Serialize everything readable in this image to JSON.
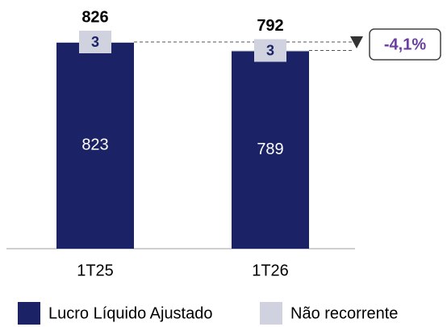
{
  "chart_data": {
    "type": "stacked_bar",
    "categories": [
      "1T25",
      "1T26"
    ],
    "series": [
      {
        "name": "Lucro Líquido Ajustado",
        "color": "#1b2366",
        "values": [
          823,
          789
        ]
      },
      {
        "name": "Não recorrente",
        "color": "#d0d3df",
        "values": [
          3,
          3
        ]
      }
    ],
    "totals": [
      826,
      792
    ],
    "annotation": "-4,1%"
  }
}
